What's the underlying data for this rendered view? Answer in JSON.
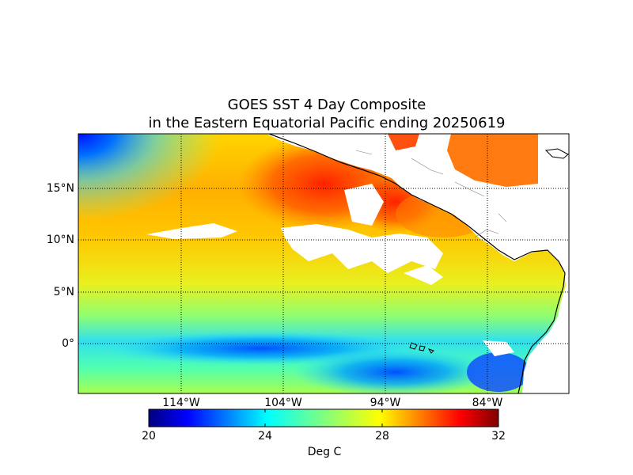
{
  "title_line1": "GOES SST 4 Day Composite",
  "title_line2": "in the Eastern Equatorial Pacific ending 20250619",
  "lat_labels": [
    "15°N",
    "10°N",
    "5°N",
    "0°"
  ],
  "lon_labels": [
    "114°W",
    "104°W",
    "94°W",
    "84°W"
  ],
  "colorbar": {
    "label": "Deg C",
    "ticks": [
      "20",
      "24",
      "28",
      "32"
    ],
    "min": 20,
    "max": 32,
    "colormap": "jet"
  },
  "map": {
    "grid": true,
    "grid_style": "dotted",
    "land_color": "#ffffff",
    "no_data_color": "#ffffff",
    "coastline_color": "#000000"
  }
}
